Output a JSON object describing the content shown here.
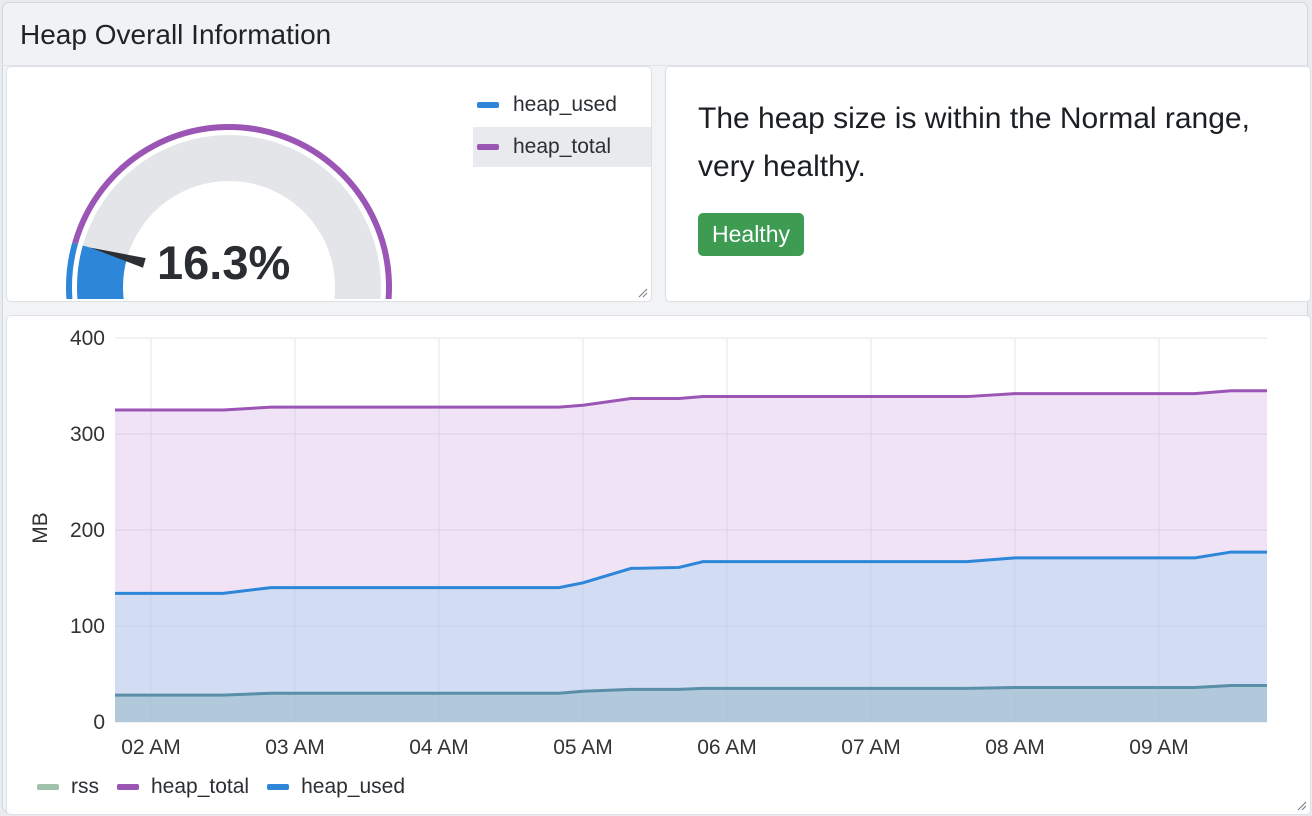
{
  "header": {
    "title": "Heap Overall Information"
  },
  "gauge": {
    "value_text": "16.3%",
    "used_fraction": 0.163,
    "legend": [
      {
        "label": "heap_used",
        "color": "#2d86d8"
      },
      {
        "label": "heap_total",
        "color": "#9b55b5"
      }
    ]
  },
  "status": {
    "message": "The heap size is within the Normal range, very healthy.",
    "badge": "Healthy",
    "badge_color": "#3d9b52"
  },
  "chart_data": {
    "type": "area",
    "ylabel": "MB",
    "ylim": [
      0,
      400
    ],
    "yticks": [
      0,
      100,
      200,
      300,
      400
    ],
    "xticks": [
      "02 AM",
      "03 AM",
      "04 AM",
      "05 AM",
      "06 AM",
      "07 AM",
      "08 AM",
      "09 AM"
    ],
    "x": [
      "01:45",
      "02:00",
      "02:30",
      "02:50",
      "03:00",
      "04:00",
      "04:50",
      "05:00",
      "05:20",
      "05:40",
      "05:50",
      "06:00",
      "07:00",
      "07:40",
      "08:00",
      "09:00",
      "09:15",
      "09:30",
      "09:45"
    ],
    "grid": true,
    "series": [
      {
        "name": "rss",
        "color": "#9ec3aa",
        "values": [
          28,
          28,
          28,
          30,
          30,
          30,
          30,
          32,
          34,
          34,
          35,
          35,
          35,
          35,
          36,
          36,
          36,
          38,
          38
        ]
      },
      {
        "name": "heap_total",
        "color": "#9b55b5",
        "values": [
          325,
          325,
          325,
          328,
          328,
          328,
          328,
          330,
          337,
          337,
          339,
          339,
          339,
          339,
          342,
          342,
          342,
          345,
          345
        ]
      },
      {
        "name": "heap_used",
        "color": "#2d86d8",
        "values": [
          134,
          134,
          134,
          140,
          140,
          140,
          140,
          145,
          160,
          161,
          167,
          167,
          167,
          167,
          171,
          171,
          171,
          177,
          177
        ]
      }
    ],
    "legend_position": "bottom-left"
  }
}
